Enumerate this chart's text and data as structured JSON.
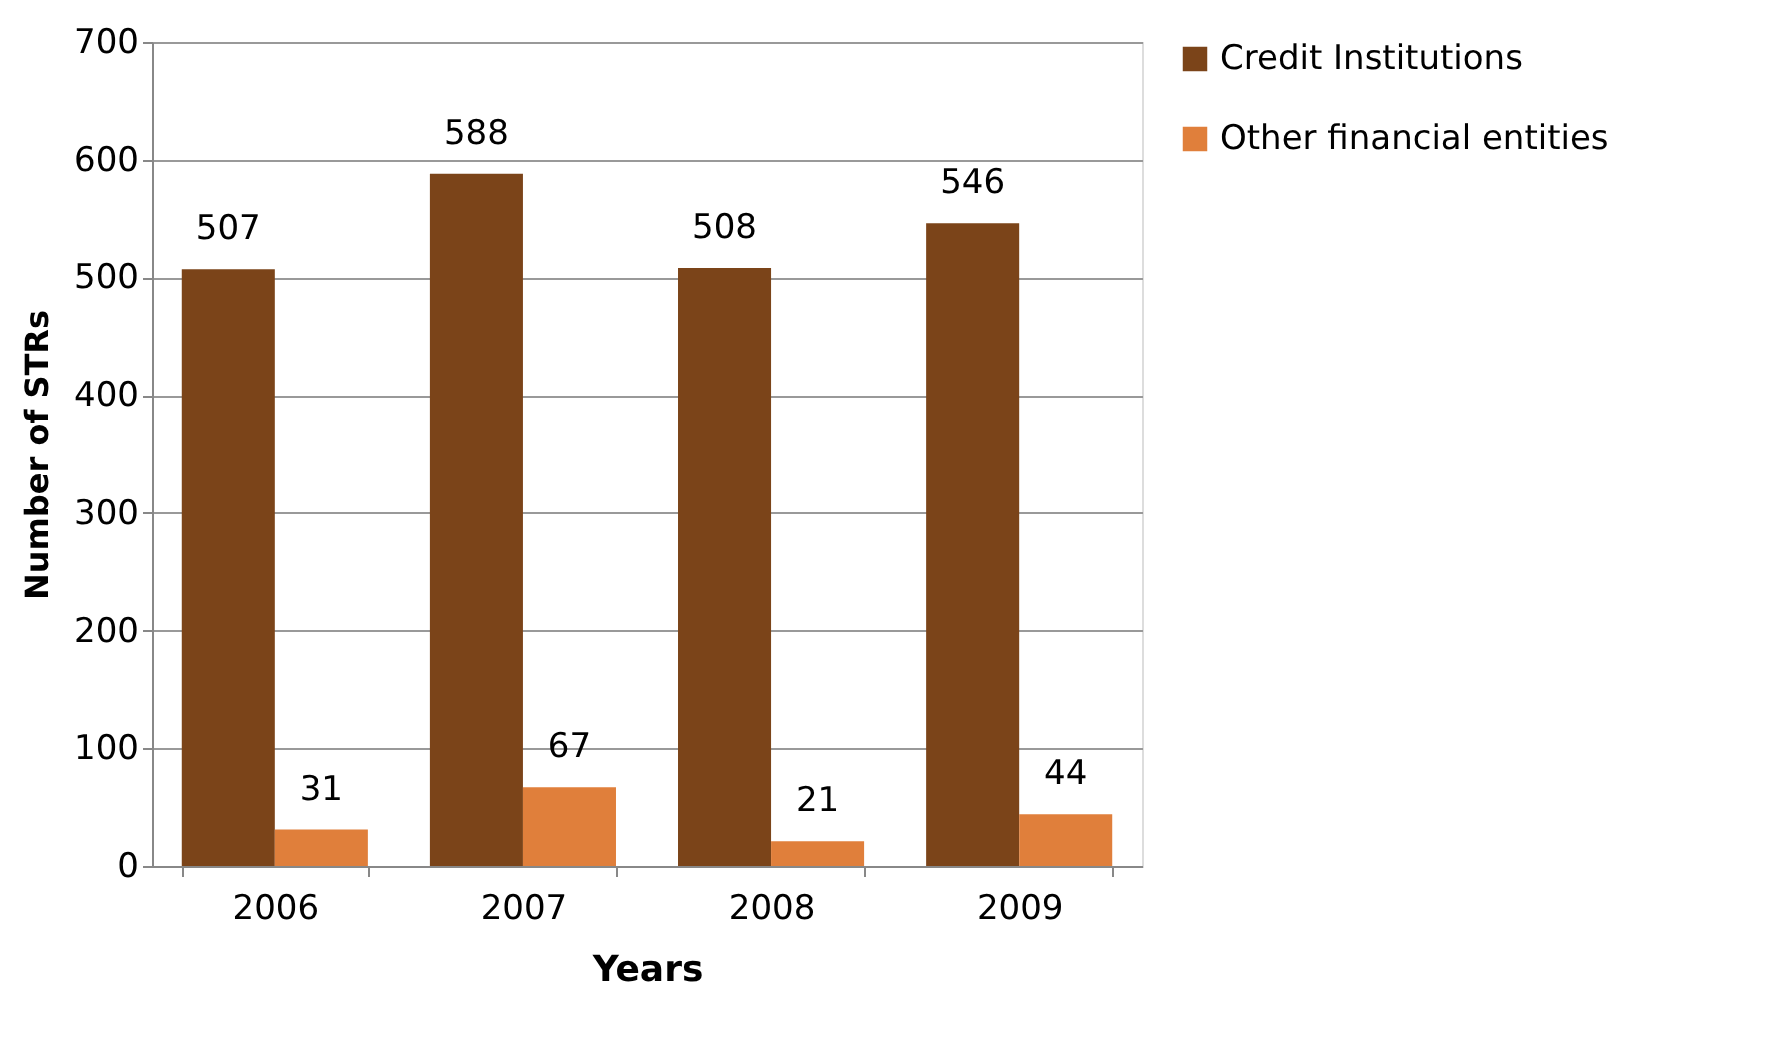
{
  "chart_data": {
    "type": "bar",
    "xlabel": "Years",
    "ylabel": "Number of STRs",
    "categories": [
      "2006",
      "2007",
      "2008",
      "2009"
    ],
    "series": [
      {
        "name": "Credit Institutions",
        "color": "#7b4419",
        "values": [
          507,
          588,
          508,
          546
        ]
      },
      {
        "name": "Other financial entities",
        "color": "#e07f3b",
        "values": [
          31,
          67,
          21,
          44
        ]
      }
    ],
    "ylim": [
      0,
      700
    ],
    "yticks": [
      0,
      100,
      200,
      300,
      400,
      500,
      600,
      700
    ],
    "grid": "y",
    "legend": "right",
    "data_labels": true
  }
}
